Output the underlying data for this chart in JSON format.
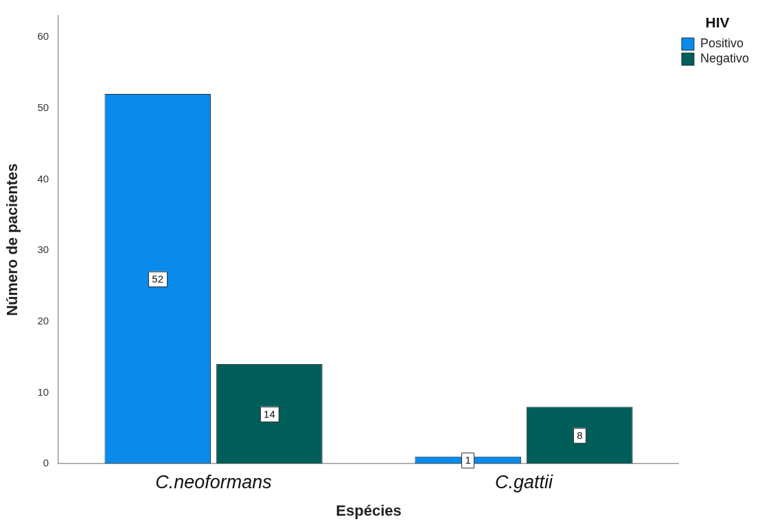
{
  "chart_data": {
    "type": "bar",
    "xlabel": "Espécies",
    "ylabel": "Número de pacientes",
    "legend_title": "HIV",
    "categories": [
      "C.neoformans",
      "C.gattii"
    ],
    "series": [
      {
        "name": "Positivo",
        "color": "#0a8aea",
        "values": [
          52,
          1
        ]
      },
      {
        "name": "Negativo",
        "color": "#005e5a",
        "values": [
          14,
          8
        ]
      }
    ],
    "ylim": [
      0,
      63
    ],
    "yticks": [
      0,
      10,
      20,
      30,
      40,
      50,
      60
    ],
    "grid": false,
    "legend": "top right",
    "data_labels": true
  }
}
